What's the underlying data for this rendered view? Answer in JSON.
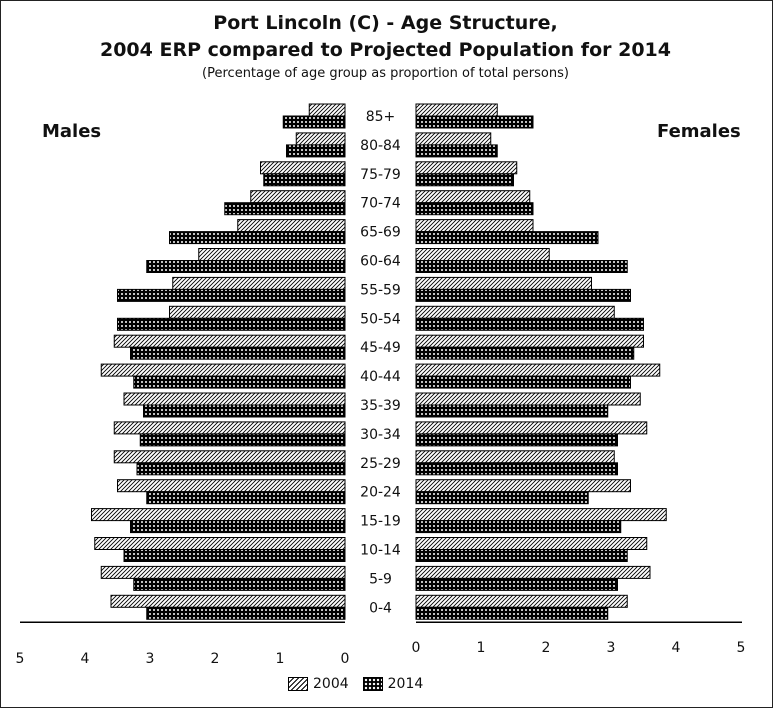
{
  "chart_data": {
    "type": "bar",
    "orientation": "population-pyramid",
    "title": "Port Lincoln (C)  -  Age Structure,",
    "title_line2": "2004 ERP compared to Projected Population for 2014",
    "subtitle": "(Percentage of age group as proportion of total persons)",
    "left_label": "Males",
    "right_label": "Females",
    "categories": [
      "85+",
      "80-84",
      "75-79",
      "70-74",
      "65-69",
      "60-64",
      "55-59",
      "50-54",
      "45-49",
      "40-44",
      "35-39",
      "30-34",
      "25-29",
      "20-24",
      "15-19",
      "10-14",
      "5-9",
      "0-4"
    ],
    "xlim": [
      0,
      5
    ],
    "x_ticks": [
      "0",
      "1",
      "2",
      "3",
      "4",
      "5"
    ],
    "legend_placement": "bottom-center",
    "series": [
      {
        "name": "2004",
        "pattern": "diagonal-hatch",
        "males": [
          0.55,
          0.75,
          1.3,
          1.45,
          1.65,
          2.25,
          2.65,
          2.7,
          3.55,
          3.75,
          3.4,
          3.55,
          3.55,
          3.5,
          3.9,
          3.85,
          3.75,
          3.6
        ],
        "females": [
          1.25,
          1.15,
          1.55,
          1.75,
          1.8,
          2.05,
          2.7,
          3.05,
          3.5,
          3.75,
          3.45,
          3.55,
          3.05,
          3.3,
          3.85,
          3.55,
          3.6,
          3.25
        ]
      },
      {
        "name": "2014",
        "pattern": "dotted-dark",
        "males": [
          0.95,
          0.9,
          1.25,
          1.85,
          2.7,
          3.05,
          3.5,
          3.5,
          3.3,
          3.25,
          3.1,
          3.15,
          3.2,
          3.05,
          3.3,
          3.4,
          3.25,
          3.05
        ],
        "females": [
          1.8,
          1.25,
          1.5,
          1.8,
          2.8,
          3.25,
          3.3,
          3.5,
          3.35,
          3.3,
          2.95,
          3.1,
          3.1,
          2.65,
          3.15,
          3.25,
          3.1,
          2.95
        ]
      }
    ],
    "colors": {
      "bar_outline": "#000000",
      "dots_fill": "#000000",
      "background": "#ffffff"
    }
  }
}
